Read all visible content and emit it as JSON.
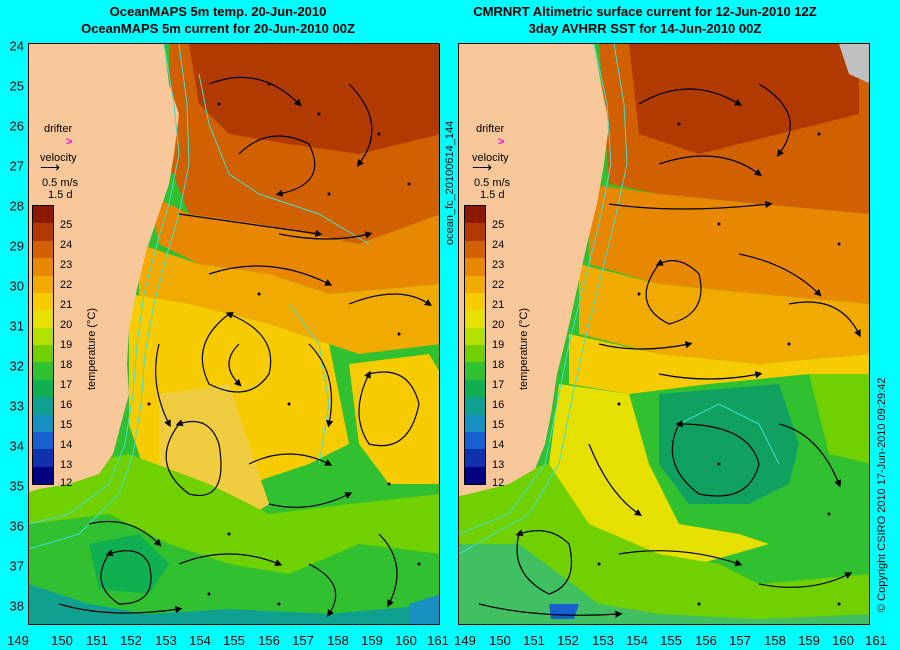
{
  "titles": {
    "left_line1": "OceanMAPS 5m temp. 20-Jun-2010",
    "left_line2": "OceanMAPS 5m current for 20-Jun-2010 00Z",
    "right_line1": "CMRNRT Altimetric surface current for 12-Jun-2010 12Z",
    "right_line2": "3day AVHRR SST for 14-Jun-2010 00Z"
  },
  "y_axis_labels": [
    "24",
    "25",
    "26",
    "27",
    "28",
    "29",
    "30",
    "31",
    "32",
    "33",
    "34",
    "35",
    "36",
    "37",
    "38"
  ],
  "x_axis_labels": {
    "left": [
      "149",
      "150",
      "151",
      "152",
      "153",
      "154",
      "155",
      "156",
      "157",
      "158",
      "159",
      "160",
      "161"
    ],
    "right": [
      "152",
      "153",
      "154",
      "155",
      "156",
      "157",
      "158",
      "159",
      "160",
      "161"
    ]
  },
  "right_x_first": "149",
  "right_x_second": "150",
  "right_x_third": "151",
  "legend": {
    "drifter_label": "drifter",
    "drifter_symbol": ">",
    "velocity_label": "velocity",
    "speed_label": "0.5 m/s",
    "duration_label": "1.5 d",
    "colorbar_title": "temperature (°C)",
    "colorbar_ticks": [
      "25",
      "24",
      "23",
      "22",
      "21",
      "20",
      "19",
      "18",
      "17",
      "16",
      "15",
      "14",
      "13",
      "12"
    ]
  },
  "side_id": "ocean_fc_20100614_144",
  "copyright": "© Copyright CSIRO 2010    17-Jun-2010 09:29:42",
  "colors": {
    "background": "#00ffff",
    "land": "#f8c89a",
    "drifter": "#ff00ff",
    "isobath": "#40e0d0",
    "colorbar": [
      "#8b1a00",
      "#b03a00",
      "#d06000",
      "#e88800",
      "#f0aa00",
      "#f6cc00",
      "#e6e000",
      "#b4e000",
      "#70d000",
      "#30c030",
      "#10b050",
      "#10a090",
      "#1890c0",
      "#1860d0",
      "#1030b0",
      "#000080"
    ]
  }
}
